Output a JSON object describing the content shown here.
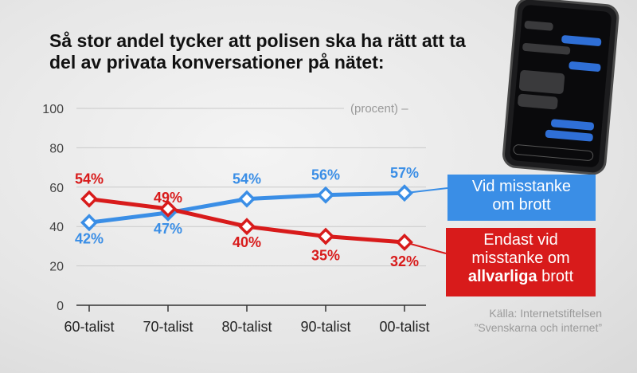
{
  "chart_data": {
    "type": "line",
    "title_lines": [
      "Så stor andel tycker att polisen ska ha rätt att ta",
      "del av privata konversationer på nätet:"
    ],
    "unit_label": "(procent) –",
    "categories": [
      "60-talist",
      "70-talist",
      "80-talist",
      "90-talist",
      "00-talist"
    ],
    "ylim": [
      0,
      100
    ],
    "yticks": [
      "0",
      "20",
      "40",
      "60",
      "80",
      "100"
    ],
    "grid": true,
    "series": [
      {
        "id": "blue",
        "name_parts": [
          "Vid misstanke",
          "om brott"
        ],
        "color": "#3a8ee6",
        "values": [
          42,
          47,
          54,
          56,
          57
        ],
        "labels": [
          "42%",
          "47%",
          "54%",
          "56%",
          "57%"
        ]
      },
      {
        "id": "red",
        "name_parts": [
          "Endast vid",
          "misstanke om",
          "allvarliga",
          " brott"
        ],
        "color": "#d81b1b",
        "values": [
          54,
          49,
          40,
          35,
          32
        ],
        "labels": [
          "54%",
          "49%",
          "40%",
          "35%",
          "32%"
        ]
      }
    ]
  },
  "source": {
    "line1": "Källa: Internetstiftelsen",
    "line2": "”Svenskarna och internet”"
  }
}
